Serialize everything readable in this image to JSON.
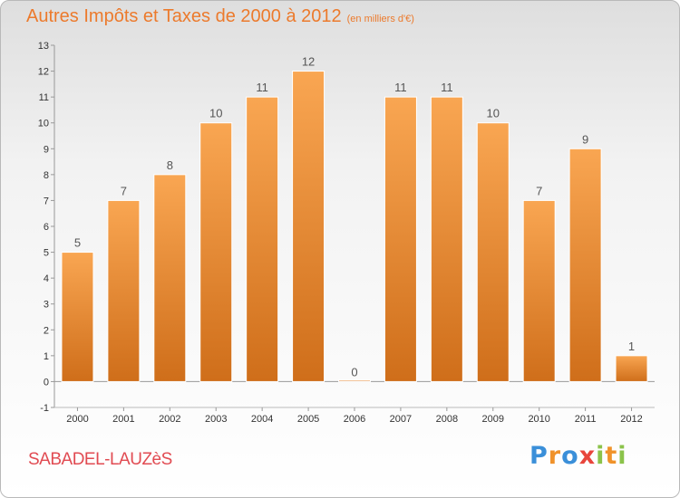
{
  "title": "Autres Impôts et Taxes de 2000 à 2012",
  "unit_label": "(en milliers d'€)",
  "place": "SABADEL-LAUZèS",
  "logo": {
    "text": "Proxiti",
    "letter_colors": [
      "#3a8fd9",
      "#f0922a",
      "#3a8fd9",
      "#e8453c",
      "#8bc34a",
      "#f0922a",
      "#8bc34a"
    ]
  },
  "colors": {
    "bar_light": "#f9a652",
    "bar_dark": "#cf6e1a",
    "title": "#ec7a2c",
    "place": "#e14b52"
  },
  "chart_data": {
    "type": "bar",
    "categories": [
      "2000",
      "2001",
      "2002",
      "2003",
      "2004",
      "2005",
      "2006",
      "2007",
      "2008",
      "2009",
      "2010",
      "2011",
      "2012"
    ],
    "values": [
      5,
      7,
      8,
      10,
      11,
      12,
      0,
      11,
      11,
      10,
      7,
      9,
      1
    ],
    "ylim": [
      -1,
      13
    ],
    "yticks": [
      -1,
      0,
      1,
      2,
      3,
      4,
      5,
      6,
      7,
      8,
      9,
      10,
      11,
      12,
      13
    ],
    "grid": false,
    "legend": "none"
  }
}
